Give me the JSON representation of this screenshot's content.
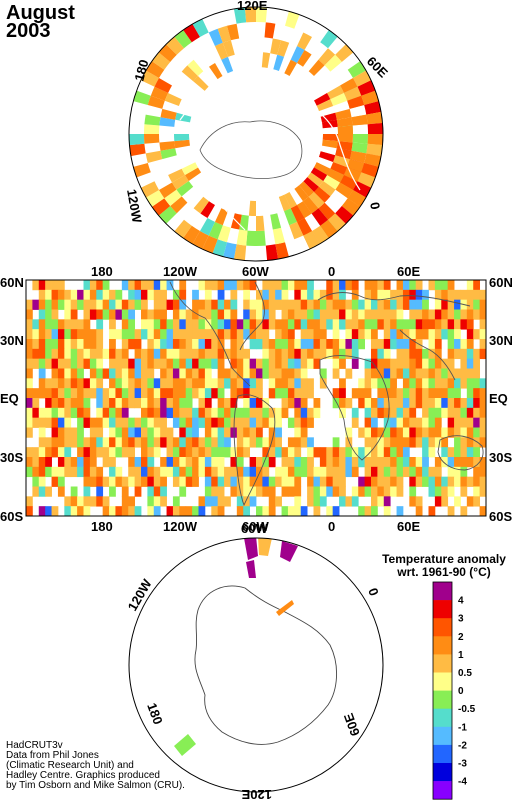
{
  "title": {
    "line1": "August",
    "line2": "2003"
  },
  "north_polar_labels": [
    "120E",
    "60E",
    "0",
    "120W",
    "180"
  ],
  "main_map": {
    "top_lon_labels": [
      "180",
      "120W",
      "60W",
      "0",
      "60E"
    ],
    "bottom_lon_labels": [
      "180",
      "120W",
      "60W",
      "0",
      "60E"
    ],
    "lat_labels": [
      "60N",
      "30N",
      "EQ",
      "30S",
      "60S"
    ]
  },
  "south_polar_labels": [
    "60W",
    "0",
    "120W",
    "60E",
    "180",
    "120E"
  ],
  "legend": {
    "title_line1": "Temperature anomaly",
    "title_line2": "wrt. 1961-90  (°C)",
    "bins": [
      {
        "label": "4",
        "color": "#a0008c"
      },
      {
        "label": "3",
        "color": "#ee0000"
      },
      {
        "label": "2",
        "color": "#ff5500"
      },
      {
        "label": "1",
        "color": "#ff8c14"
      },
      {
        "label": "0.5",
        "color": "#ffbb44"
      },
      {
        "label": "0",
        "color": "#ffff88"
      },
      {
        "label": "-0.5",
        "color": "#88ee55"
      },
      {
        "label": "-1",
        "color": "#55ddcc"
      },
      {
        "label": "-2",
        "color": "#55bbff"
      },
      {
        "label": "-3",
        "color": "#2266ff"
      },
      {
        "label": "-4",
        "color": "#0000dd"
      },
      {
        "label": "",
        "color": "#8800ff"
      }
    ]
  },
  "credits": [
    "HadCRUT3v",
    "Data from Phil Jones",
    "(Climatic Research Unit) and",
    "Hadley Centre.  Graphics produced",
    "by Tim Osborn and Mike Salmon (CRU)."
  ]
}
